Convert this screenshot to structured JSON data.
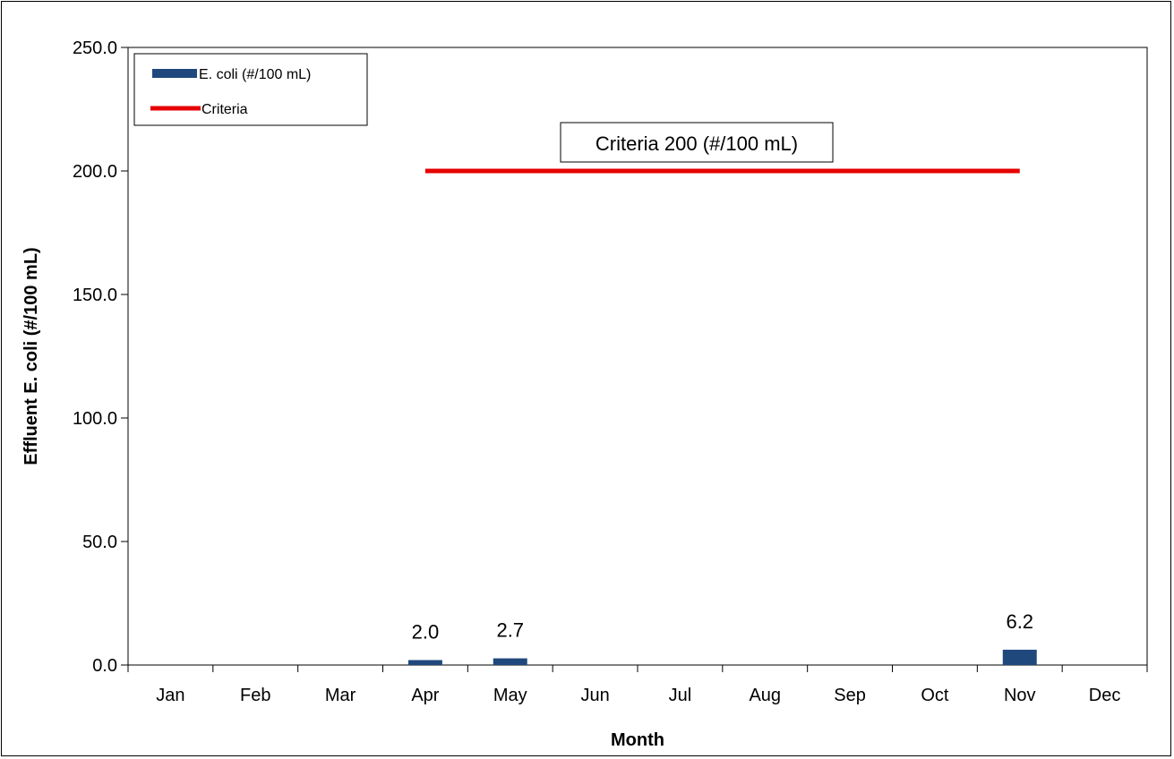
{
  "chart_data": {
    "type": "bar",
    "categories": [
      "Jan",
      "Feb",
      "Mar",
      "Apr",
      "May",
      "Jun",
      "Jul",
      "Aug",
      "Sep",
      "Oct",
      "Nov",
      "Dec"
    ],
    "series": [
      {
        "name": "E. coli (#/100 mL)",
        "type": "bar",
        "color": "#1F497D",
        "values": [
          null,
          null,
          null,
          2.0,
          2.7,
          null,
          null,
          null,
          null,
          null,
          6.2,
          null
        ],
        "data_labels": [
          "",
          "",
          "",
          "2.0",
          "2.7",
          "",
          "",
          "",
          "",
          "",
          "6.2",
          ""
        ]
      },
      {
        "name": "Criteria",
        "type": "line",
        "color": "#E60000",
        "values": [
          null,
          null,
          null,
          200,
          200,
          200,
          200,
          200,
          200,
          200,
          200,
          null
        ]
      }
    ],
    "xlabel": "Month",
    "ylabel": "Effluent E. coli (#/100 mL)",
    "ylim": [
      0,
      250
    ],
    "yticks": [
      "0.0",
      "50.0",
      "100.0",
      "150.0",
      "200.0",
      "250.0"
    ],
    "annotation": "Criteria 200 (#/100 mL)",
    "legend_position": "top-left",
    "grid": false
  }
}
